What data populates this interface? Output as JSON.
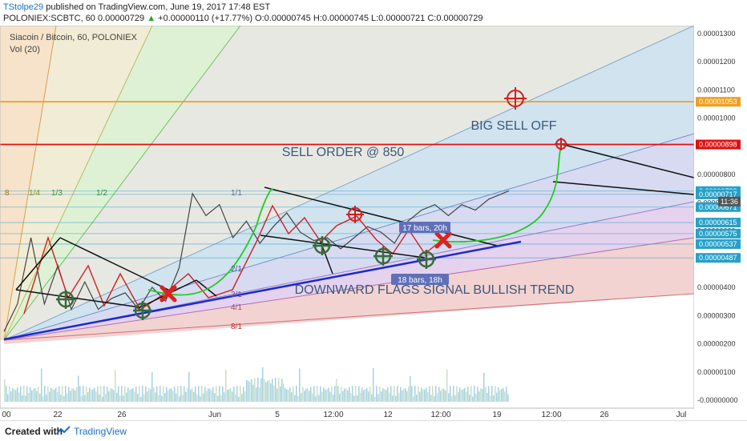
{
  "header": {
    "author": "TStolpe29",
    "published": "published on TradingView.com, June 19, 2017 17:48 EST",
    "symbol": "POLONIEX:SCBTC, 60",
    "last": "0.00000729",
    "change_arrow": "▲",
    "change": "+0.00000110 (+17.77%)",
    "ohlc": "O:0.00000745 H:0.00000745 L:0.00000721 C:0.00000729"
  },
  "legend": {
    "title": "Siacoin / Bitcoin, 60, POLONIEX",
    "vol": "Vol (20)"
  },
  "annotations": {
    "big_sell_off": "BIG SELL OFF",
    "sell_order": "SELL ORDER @ 850",
    "downward_flags": "DOWNWARD FLAGS SIGNAL BULLISH TREND",
    "bars_label": "18 bars, 18h",
    "bars_label_2": "17 bars, 20h"
  },
  "fan_labels": [
    "8",
    "1/4",
    "1/3",
    "1/2",
    "1/1",
    "2/1",
    "3/1",
    "4/1",
    "8/1"
  ],
  "footer": {
    "created_with": "Created with",
    "brand": "TradingView"
  },
  "colors": {
    "orange_line": "#f0a020",
    "red_line": "#e01010",
    "blue_trend": "#1a2ad0",
    "green_path": "#22cc22",
    "price_label": "#26a0c8"
  },
  "chart_data": {
    "type": "line",
    "title": "Siacoin / Bitcoin, 60, POLONIEX",
    "xlabel": "",
    "ylabel": "",
    "x_ticks": [
      "00",
      "22",
      "26",
      "Jun",
      "5",
      "12:00",
      "12",
      "12:00",
      "19",
      "12:00",
      "26",
      "Jul"
    ],
    "y_ticks": [
      "0.00001300",
      "0.00001200",
      "0.00001100",
      "0.00001000",
      "0.00000900",
      "0.00000800",
      "0.00000700",
      "0.00000600",
      "0.00000500",
      "0.00000400",
      "0.00000300",
      "0.00000200",
      "0.00000100",
      "-0.00000000"
    ],
    "ylim": [
      -1e-07,
      1.3e-06
    ],
    "horizontal_levels": [
      {
        "value": 1.053e-05,
        "label": "0.00001053",
        "color": "#f0a020"
      },
      {
        "value": 8.98e-06,
        "label": "0.00000898",
        "color": "#e01010"
      },
      {
        "value": 7.29e-06,
        "label": "0.00000729",
        "color": "#26a0c8"
      },
      {
        "value": 7.17e-06,
        "label": "0.00000717",
        "color": "#26a0c8"
      },
      {
        "value": 6.71e-06,
        "label": "0.00000671",
        "color": "#26a0c8"
      },
      {
        "value": 6.15e-06,
        "label": "0.00000615",
        "color": "#26a0c8"
      },
      {
        "value": 5.75e-06,
        "label": "0.00000575",
        "color": "#26a0c8"
      },
      {
        "value": 5.37e-06,
        "label": "0.00000537",
        "color": "#26a0c8"
      },
      {
        "value": 4.87e-06,
        "label": "0.00000487",
        "color": "#26a0c8"
      }
    ],
    "countdown": "11:36",
    "series": [
      {
        "name": "SCBTC",
        "x": [
          0,
          4,
          8,
          12,
          16,
          20,
          24,
          28,
          32,
          36,
          40,
          44,
          48,
          52,
          56,
          60,
          64,
          68,
          72,
          76,
          80,
          84,
          88,
          92,
          96,
          100,
          104,
          108,
          112,
          116,
          120,
          124,
          128,
          132,
          136,
          140,
          144,
          148,
          150
        ],
        "values": [
          2.2e-06,
          3.2e-06,
          5.6e-06,
          3.2e-06,
          4.6e-06,
          3e-06,
          4e-06,
          3e-06,
          3.4e-06,
          3.6e-06,
          3e-06,
          3.8e-06,
          3.3e-06,
          4.5e-06,
          7.2e-06,
          6.4e-06,
          6.8e-06,
          5.6e-06,
          6.2e-06,
          5.4e-06,
          6e-06,
          6.5e-06,
          5.8e-06,
          5.5e-06,
          5.6e-06,
          5.2e-06,
          5.6e-06,
          6e-06,
          5.8e-06,
          5.4e-06,
          6.2e-06,
          6.6e-06,
          6.8e-06,
          6.4e-06,
          6.8e-06,
          6.6e-06,
          7e-06,
          7.2e-06,
          7.3e-06
        ]
      }
    ]
  }
}
